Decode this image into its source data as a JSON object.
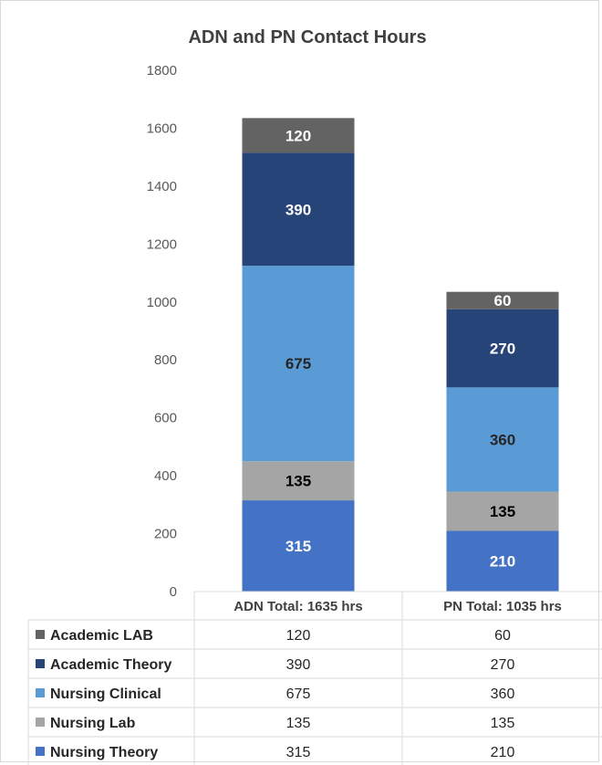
{
  "chart_data": {
    "type": "bar",
    "stacked": true,
    "title": "ADN and PN Contact Hours",
    "categories": [
      "ADN Total: 1635 hrs",
      "PN Total: 1035 hrs"
    ],
    "ylim": [
      0,
      1800
    ],
    "yticks": [
      0,
      200,
      400,
      600,
      800,
      1000,
      1200,
      1400,
      1600,
      1800
    ],
    "grid": false,
    "legend": "data-table-left",
    "series": [
      {
        "name": "Nursing Theory",
        "values": [
          315,
          210
        ],
        "color": "#4472c4",
        "label_color": "#ffffff"
      },
      {
        "name": "Nursing Lab",
        "values": [
          135,
          135
        ],
        "color": "#a5a5a5",
        "label_color": "#000000"
      },
      {
        "name": "Nursing Clinical",
        "values": [
          675,
          360
        ],
        "color": "#5b9bd5",
        "label_color": "#262626"
      },
      {
        "name": "Academic Theory",
        "values": [
          390,
          270
        ],
        "color": "#264478",
        "label_color": "#ffffff"
      },
      {
        "name": "Academic LAB",
        "values": [
          120,
          60
        ],
        "color": "#636363",
        "label_color": "#ffffff"
      }
    ],
    "table_order": [
      "Academic LAB",
      "Academic Theory",
      "Nursing Clinical",
      "Nursing Lab",
      "Nursing Theory"
    ]
  }
}
